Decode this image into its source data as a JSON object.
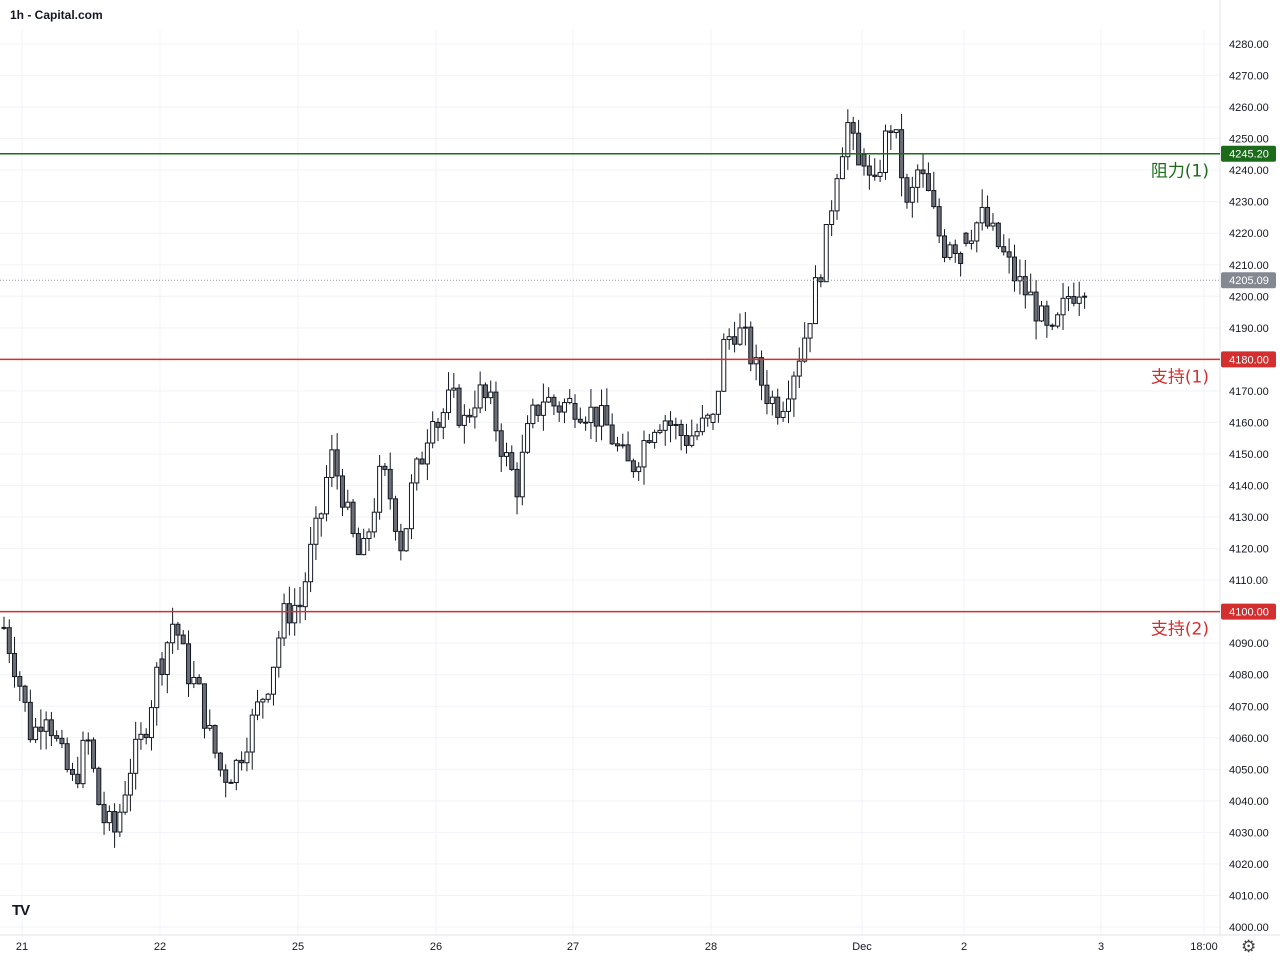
{
  "title": "1h - Capital.com",
  "logo_text": "TV",
  "settings_icon": "gear-icon",
  "chart_data": {
    "type": "candlestick",
    "ylim": [
      4000,
      4280
    ],
    "y_ticks": [
      "4280.00",
      "4270.00",
      "4260.00",
      "4250.00",
      "4240.00",
      "4230.00",
      "4220.00",
      "4210.00",
      "4200.00",
      "4190.00",
      "4180.00",
      "4170.00",
      "4160.00",
      "4150.00",
      "4140.00",
      "4130.00",
      "4120.00",
      "4110.00",
      "4100.00",
      "4090.00",
      "4080.00",
      "4070.00",
      "4060.00",
      "4050.00",
      "4040.00",
      "4030.00",
      "4020.00",
      "4010.00",
      "4000.00"
    ],
    "x_ticks": [
      "21",
      "22",
      "25",
      "26",
      "27",
      "28",
      "Dec",
      "2",
      "3",
      "18:00"
    ],
    "current_price": {
      "value": 4205.09,
      "label": "4205.09"
    },
    "levels": [
      {
        "value": 4245.2,
        "label": "4245.20",
        "name": "阻力(1)",
        "color": "#1b6b1b"
      },
      {
        "value": 4180.0,
        "label": "4180.00",
        "name": "支持(1)",
        "color": "#d32f2f"
      },
      {
        "value": 4100.0,
        "label": "4100.00",
        "name": "支持(2)",
        "color": "#d32f2f"
      }
    ],
    "day_anchors": [
      {
        "tick": "21",
        "start": 4095,
        "trend": [
          4095,
          4080,
          4060,
          4070,
          4055,
          4045,
          4060,
          4035,
          4030,
          4050,
          4060,
          4080
        ]
      },
      {
        "tick": "22",
        "start": 4085,
        "trend": [
          4085,
          4098,
          4082,
          4075,
          4060,
          4048,
          4050,
          4060,
          4070,
          4080,
          4098,
          4102
        ]
      },
      {
        "tick": "25",
        "start": 4102,
        "trend": [
          4102,
          4118,
          4130,
          4150,
          4140,
          4125,
          4115,
          4130,
          4145,
          4135,
          4120,
          4140,
          4150,
          4165
        ]
      },
      {
        "tick": "26",
        "start": 4160,
        "trend": [
          4160,
          4168,
          4160,
          4170,
          4165,
          4150,
          4140,
          4160,
          4168,
          4165,
          4166
        ]
      },
      {
        "tick": "27",
        "start": 4166,
        "trend": [
          4166,
          4164,
          4162,
          4158,
          4150,
          4145,
          4152,
          4160,
          4162,
          4158,
          4155,
          4157,
          4160
        ]
      },
      {
        "tick": "28",
        "start": 4160,
        "trend": [
          4160,
          4185,
          4190,
          4185,
          4175,
          4168,
          4165,
          4175,
          4185,
          4200,
          4215,
          4240,
          4255,
          4240
        ]
      },
      {
        "tick": "Dec",
        "start": 4245,
        "trend": [
          4245,
          4230,
          4245,
          4255,
          4245,
          4225,
          4240,
          4235,
          4225,
          4215,
          4220,
          4212
        ]
      },
      {
        "tick": "2",
        "start": 4212,
        "trend": [
          4220,
          4225,
          4215,
          4205,
          4198,
          4185,
          4200,
          4205
        ]
      }
    ]
  }
}
